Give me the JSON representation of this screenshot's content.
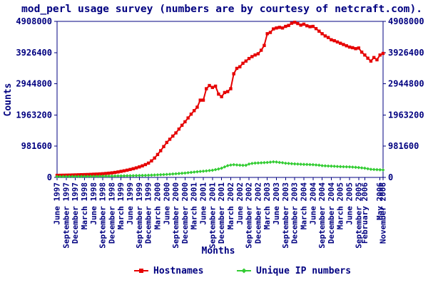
{
  "colors": {
    "axis": "#000080",
    "background": "#ffffff",
    "hostnames": "#e60000",
    "unique_ips": "#33cc33"
  },
  "chart_data": {
    "type": "line",
    "title": "mod_perl usage survey (numbers are by courtesy of netcraft.com).",
    "xlabel": "Months",
    "ylabel": "Counts",
    "ylim": [
      0,
      4908000
    ],
    "y_ticks": [
      0,
      981600,
      1963200,
      2944800,
      3926400,
      4908000
    ],
    "y_axis_sides": "both",
    "grid": false,
    "legend_position": "bottom",
    "x_ticks": [
      {
        "i": 0,
        "label": "June 1997"
      },
      {
        "i": 3,
        "label": "September 1997"
      },
      {
        "i": 6,
        "label": "December 1997"
      },
      {
        "i": 9,
        "label": "March 1998"
      },
      {
        "i": 12,
        "label": "June 1998"
      },
      {
        "i": 15,
        "label": "September 1998"
      },
      {
        "i": 18,
        "label": "December 1998"
      },
      {
        "i": 21,
        "label": "March 1999"
      },
      {
        "i": 24,
        "label": "June 1999"
      },
      {
        "i": 27,
        "label": "September 1999"
      },
      {
        "i": 30,
        "label": "December 1999"
      },
      {
        "i": 33,
        "label": "March 2000"
      },
      {
        "i": 36,
        "label": "June 2000"
      },
      {
        "i": 39,
        "label": "September 2000"
      },
      {
        "i": 42,
        "label": "December 2000"
      },
      {
        "i": 45,
        "label": "March 2001"
      },
      {
        "i": 48,
        "label": "June 2001"
      },
      {
        "i": 51,
        "label": "September 2001"
      },
      {
        "i": 54,
        "label": "December 2001"
      },
      {
        "i": 57,
        "label": "March 2002"
      },
      {
        "i": 60,
        "label": "June 2002"
      },
      {
        "i": 63,
        "label": "September 2002"
      },
      {
        "i": 66,
        "label": "December 2002"
      },
      {
        "i": 69,
        "label": "March 2003"
      },
      {
        "i": 72,
        "label": "June 2003"
      },
      {
        "i": 75,
        "label": "September 2003"
      },
      {
        "i": 78,
        "label": "December 2003"
      },
      {
        "i": 81,
        "label": "March 2004"
      },
      {
        "i": 84,
        "label": "June 2004"
      },
      {
        "i": 87,
        "label": "September 2004"
      },
      {
        "i": 90,
        "label": "December 2004"
      },
      {
        "i": 93,
        "label": "March 2005"
      },
      {
        "i": 96,
        "label": "June 2005"
      },
      {
        "i": 99,
        "label": "September 2005"
      },
      {
        "i": 101,
        "label": "February 2006"
      },
      {
        "i": 106,
        "label": "May 2006"
      },
      {
        "i": 107,
        "label": "November 2006"
      }
    ],
    "series": [
      {
        "name": "Hostnames",
        "color": "#e60000",
        "marker": "square",
        "values": [
          65000,
          67000,
          69000,
          71000,
          73000,
          76000,
          79000,
          82000,
          85000,
          88000,
          91000,
          95000,
          100000,
          104000,
          109000,
          116000,
          124000,
          133000,
          143000,
          156000,
          172000,
          190000,
          208000,
          228000,
          250000,
          274000,
          300000,
          330000,
          364000,
          404000,
          450000,
          520000,
          610000,
          720000,
          840000,
          970000,
          1100000,
          1200000,
          1300000,
          1400000,
          1520000,
          1640000,
          1750000,
          1870000,
          1990000,
          2100000,
          2210000,
          2430000,
          2430000,
          2790000,
          2890000,
          2830000,
          2870000,
          2620000,
          2540000,
          2670000,
          2700000,
          2790000,
          3260000,
          3430000,
          3480000,
          3590000,
          3660000,
          3740000,
          3800000,
          3850000,
          3890000,
          4000000,
          4150000,
          4520000,
          4560000,
          4670000,
          4700000,
          4720000,
          4700000,
          4750000,
          4780000,
          4850000,
          4880000,
          4840000,
          4790000,
          4820000,
          4770000,
          4740000,
          4750000,
          4680000,
          4600000,
          4520000,
          4450000,
          4400000,
          4330000,
          4300000,
          4260000,
          4220000,
          4180000,
          4140000,
          4100000,
          4080000,
          4050000,
          4070000,
          3940000,
          3850000,
          3750000,
          3660000,
          3770000,
          3700000,
          3850000,
          3900000
        ]
      },
      {
        "name": "Unique IP numbers",
        "color": "#33cc33",
        "marker": "diamond",
        "values": [
          28000,
          28500,
          29000,
          29500,
          30000,
          30500,
          31000,
          31500,
          32000,
          33000,
          34000,
          35000,
          36000,
          37000,
          38000,
          39500,
          41000,
          42500,
          44000,
          45500,
          47000,
          48500,
          50000,
          52000,
          54000,
          56000,
          58000,
          60000,
          62500,
          65000,
          68000,
          72000,
          76000,
          80000,
          85000,
          90000,
          95000,
          101000,
          108000,
          115000,
          122000,
          130000,
          138000,
          148000,
          158000,
          168000,
          178000,
          188000,
          195000,
          205000,
          215000,
          225000,
          245000,
          265000,
          290000,
          330000,
          370000,
          390000,
          400000,
          392000,
          385000,
          380000,
          382000,
          420000,
          440000,
          450000,
          455000,
          460000,
          465000,
          470000,
          480000,
          490000,
          485000,
          470000,
          462000,
          445000,
          440000,
          432000,
          425000,
          420000,
          415000,
          410000,
          408000,
          404000,
          400000,
          392000,
          385000,
          370000,
          364000,
          358000,
          355000,
          350000,
          345000,
          340000,
          336000,
          333000,
          330000,
          325000,
          318000,
          310000,
          300000,
          290000,
          272000,
          255000,
          250000,
          245000,
          240000,
          235000
        ]
      }
    ]
  }
}
